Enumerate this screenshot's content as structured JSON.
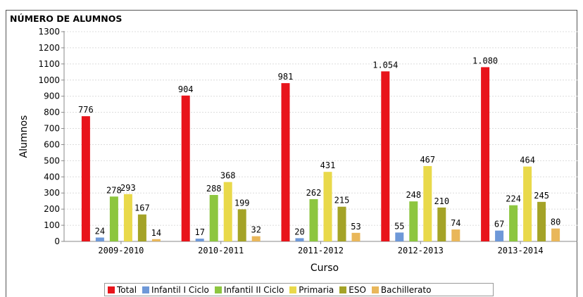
{
  "chart_data": {
    "type": "bar",
    "title": "NÚMERO DE ALUMNOS",
    "xlabel": "Curso",
    "ylabel": "Alumnos",
    "ylim": [
      0,
      1300
    ],
    "yticks": [
      0,
      100,
      200,
      300,
      400,
      500,
      600,
      700,
      800,
      900,
      1000,
      1100,
      1200,
      1300
    ],
    "grid": true,
    "legend_position": "bottom",
    "categories": [
      "2009-2010",
      "2010-2011",
      "2011-2012",
      "2012-2013",
      "2013-2014"
    ],
    "series": [
      {
        "name": "Total",
        "color": "#e8141b",
        "values": [
          776,
          904,
          981,
          1054,
          1080
        ],
        "labels": [
          "776",
          "904",
          "981",
          "1.054",
          "1.080"
        ]
      },
      {
        "name": "Infantil I Ciclo",
        "color": "#6e98d8",
        "values": [
          24,
          17,
          20,
          55,
          67
        ],
        "labels": [
          "24",
          "17",
          "20",
          "55",
          "67"
        ]
      },
      {
        "name": "Infantil II Ciclo",
        "color": "#8dc63f",
        "values": [
          278,
          288,
          262,
          248,
          224
        ],
        "labels": [
          "278",
          "288",
          "262",
          "248",
          "224"
        ]
      },
      {
        "name": "Primaria",
        "color": "#e9d94a",
        "values": [
          293,
          368,
          431,
          467,
          464
        ],
        "labels": [
          "293",
          "368",
          "431",
          "467",
          "464"
        ]
      },
      {
        "name": "ESO",
        "color": "#a4a327",
        "values": [
          167,
          199,
          215,
          210,
          245
        ],
        "labels": [
          "167",
          "199",
          "215",
          "210",
          "245"
        ]
      },
      {
        "name": "Bachillerato",
        "color": "#e9b75a",
        "values": [
          14,
          32,
          53,
          74,
          80
        ],
        "labels": [
          "14",
          "32",
          "53",
          "74",
          "80"
        ]
      }
    ]
  }
}
